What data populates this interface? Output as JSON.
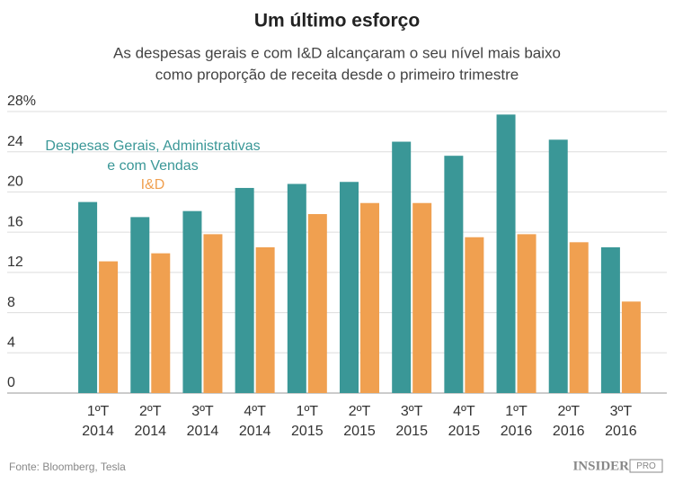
{
  "chart_data": {
    "type": "bar",
    "title": "Um último esforço",
    "subtitle": [
      "As despesas gerais e com I&D alcançaram o seu nível mais baixo",
      "como proporção de receita desde o primeiro trimestre"
    ],
    "categories": [
      "1ºT 2014",
      "2ºT 2014",
      "3ºT 2014",
      "4ºT 2014",
      "1ºT 2015",
      "2ºT 2015",
      "3ºT 2015",
      "4ºT 2015",
      "1ºT 2016",
      "2ºT 2016",
      "3ºT 2016"
    ],
    "series": [
      {
        "name": "Despesas Gerais, Administrativas e com Vendas",
        "color": "#3a9797",
        "values": [
          19.0,
          17.5,
          18.1,
          20.4,
          20.8,
          21.0,
          25.0,
          23.6,
          27.7,
          25.2,
          14.5
        ]
      },
      {
        "name": "I&D",
        "color": "#f0a050",
        "values": [
          13.1,
          13.9,
          15.8,
          14.5,
          17.8,
          18.9,
          18.9,
          15.5,
          15.8,
          15.0,
          9.1
        ]
      }
    ],
    "ylim": [
      0,
      28
    ],
    "yticks": [
      0,
      4,
      8,
      12,
      16,
      20,
      24,
      {
        "value": 28,
        "label": "28%"
      }
    ],
    "grid": true,
    "source": "Fonte: Bloomberg, Tesla",
    "logo": "INSIDER",
    "logo_badge": "PRO"
  }
}
